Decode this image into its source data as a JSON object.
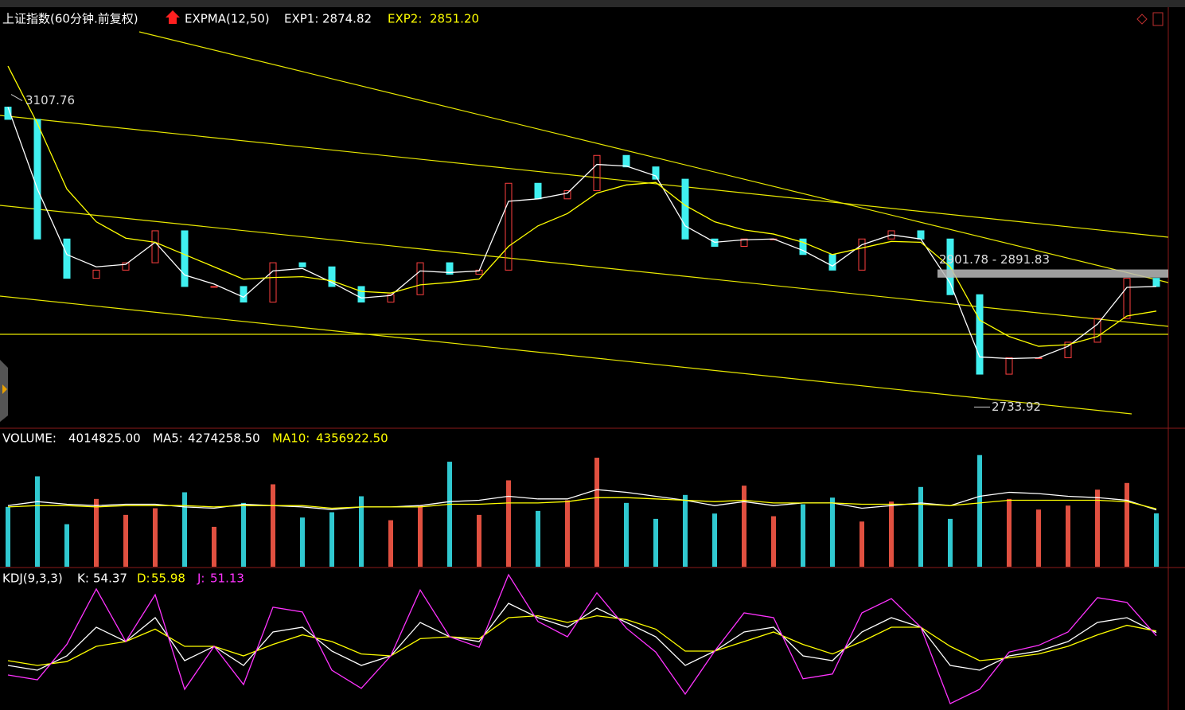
{
  "chart_data": [
    {
      "type": "candlestick",
      "title": "上证指数(60分钟.前复权)",
      "indicator": "EXPMA(12,50)",
      "open": [
        3100,
        3085,
        2939,
        2891,
        2901,
        2910,
        2949,
        2881,
        2881,
        2862,
        2910,
        2905,
        2881,
        2862,
        2871,
        2910,
        2896,
        2901,
        3007,
        2988,
        2998,
        3041,
        3027,
        3012,
        2939,
        2930,
        2939,
        2939,
        2920,
        2901,
        2939,
        2949,
        2939,
        2871,
        2774,
        2794,
        2794,
        2813,
        2842,
        2891
      ],
      "close": [
        3085,
        2939,
        2891,
        2901,
        2910,
        2949,
        2881,
        2881,
        2862,
        2910,
        2905,
        2881,
        2862,
        2871,
        2910,
        2896,
        2901,
        3007,
        2988,
        2998,
        3041,
        3027,
        3012,
        2939,
        2930,
        2939,
        2939,
        2920,
        2901,
        2939,
        2949,
        2939,
        2871,
        2774,
        2794,
        2794,
        2813,
        2842,
        2891,
        2881
      ],
      "ylim": [
        2708,
        3221
      ],
      "series": [
        {
          "name": "EXP1:",
          "color": "#ffffff",
          "current": 2874.82,
          "values": [
            3100,
            3000,
            2920,
            2905,
            2908,
            2935,
            2895,
            2884,
            2868,
            2900,
            2903,
            2886,
            2867,
            2870,
            2900,
            2898,
            2900,
            2985,
            2988,
            2995,
            3030,
            3028,
            3016,
            2955,
            2935,
            2938,
            2939,
            2925,
            2906,
            2932,
            2944,
            2939,
            2885,
            2795,
            2793,
            2794,
            2808,
            2835,
            2880,
            2881
          ]
        },
        {
          "name": "EXP2:",
          "color": "#ffff00",
          "current": 2851.2,
          "current_label": "2851.20",
          "values": [
            3150,
            3080,
            3000,
            2960,
            2940,
            2935,
            2920,
            2905,
            2890,
            2892,
            2893,
            2888,
            2875,
            2873,
            2883,
            2886,
            2890,
            2930,
            2955,
            2970,
            2995,
            3005,
            3008,
            2980,
            2960,
            2950,
            2945,
            2935,
            2920,
            2928,
            2936,
            2935,
            2905,
            2840,
            2820,
            2808,
            2810,
            2820,
            2845,
            2851
          ]
        }
      ],
      "high_label": 3107.76,
      "low_label": 2733.92,
      "range": {
        "label": "2901.78 - 2891.83",
        "top": 2901.78,
        "bottom": 2891.83
      }
    },
    {
      "type": "volume",
      "name": "VOLUME:",
      "current": 4014825,
      "current_label": "4014825.00",
      "values": [
        4500000,
        6800000,
        3200000,
        5100000,
        3900000,
        4400000,
        5600000,
        3000000,
        4800000,
        6200000,
        3700000,
        4100000,
        5300000,
        3500000,
        4600000,
        7900000,
        3900000,
        6500000,
        4200000,
        5000000,
        8200000,
        4800000,
        3600000,
        5400000,
        4000000,
        6100000,
        3800000,
        4700000,
        5200000,
        3400000,
        4900000,
        6000000,
        3600000,
        8400000,
        5100000,
        4300000,
        4600000,
        5800000,
        6300000,
        4014825
      ],
      "ylim": [
        0,
        10300000
      ],
      "series": [
        {
          "name": "MA5:",
          "color": "#ffffff",
          "current": 4274258.5,
          "current_label": "4274258.50",
          "values": [
            4600000,
            4900000,
            4700000,
            4600000,
            4700000,
            4700000,
            4500000,
            4400000,
            4700000,
            4600000,
            4500000,
            4300000,
            4500000,
            4500000,
            4600000,
            4900000,
            5000000,
            5300000,
            5100000,
            5100000,
            5800000,
            5600000,
            5300000,
            5000000,
            4600000,
            4900000,
            4600000,
            4800000,
            4800000,
            4400000,
            4600000,
            4800000,
            4600000,
            5300000,
            5600000,
            5500000,
            5300000,
            5200000,
            5000000,
            4274258.5
          ]
        },
        {
          "name": "MA10:",
          "color": "#ffff00",
          "current": 4356922.5,
          "current_label": "4356922.50",
          "values": [
            4500000,
            4600000,
            4600000,
            4500000,
            4600000,
            4600000,
            4600000,
            4500000,
            4600000,
            4600000,
            4600000,
            4400000,
            4500000,
            4500000,
            4500000,
            4700000,
            4700000,
            4800000,
            4800000,
            4900000,
            5200000,
            5200000,
            5100000,
            5000000,
            4900000,
            5000000,
            4800000,
            4800000,
            4800000,
            4700000,
            4700000,
            4700000,
            4600000,
            4800000,
            5000000,
            5000000,
            5000000,
            5000000,
            4900000,
            4356922.5
          ]
        }
      ]
    },
    {
      "type": "kdj",
      "name": "KDJ(9,3,3)",
      "ylim": [
        -25,
        120
      ],
      "series": [
        {
          "name": "K:",
          "color": "#ffffff",
          "current": 54.37,
          "values": [
            20,
            15,
            30,
            60,
            45,
            70,
            25,
            40,
            20,
            55,
            60,
            35,
            20,
            30,
            65,
            50,
            45,
            85,
            70,
            60,
            80,
            65,
            50,
            20,
            35,
            55,
            60,
            30,
            25,
            55,
            70,
            60,
            20,
            15,
            30,
            35,
            45,
            65,
            70,
            54.37
          ]
        },
        {
          "name": "D:",
          "color": "#ffff00",
          "current": 55.98,
          "values": [
            25,
            20,
            24,
            40,
            45,
            58,
            40,
            40,
            30,
            42,
            52,
            45,
            32,
            30,
            48,
            50,
            48,
            70,
            72,
            65,
            72,
            68,
            58,
            35,
            35,
            45,
            55,
            42,
            32,
            45,
            60,
            60,
            40,
            25,
            28,
            32,
            40,
            52,
            62,
            55.98
          ]
        },
        {
          "name": "J:",
          "color": "#ff33ff",
          "current": 51.13,
          "values": [
            10,
            5,
            42,
            100,
            45,
            94,
            -5,
            40,
            0,
            81,
            76,
            15,
            -4,
            30,
            99,
            50,
            39,
            115,
            66,
            50,
            96,
            59,
            34,
            -10,
            35,
            75,
            70,
            6,
            11,
            75,
            90,
            60,
            -20,
            -5,
            34,
            41,
            55,
            91,
            86,
            51.13
          ]
        }
      ]
    }
  ]
}
